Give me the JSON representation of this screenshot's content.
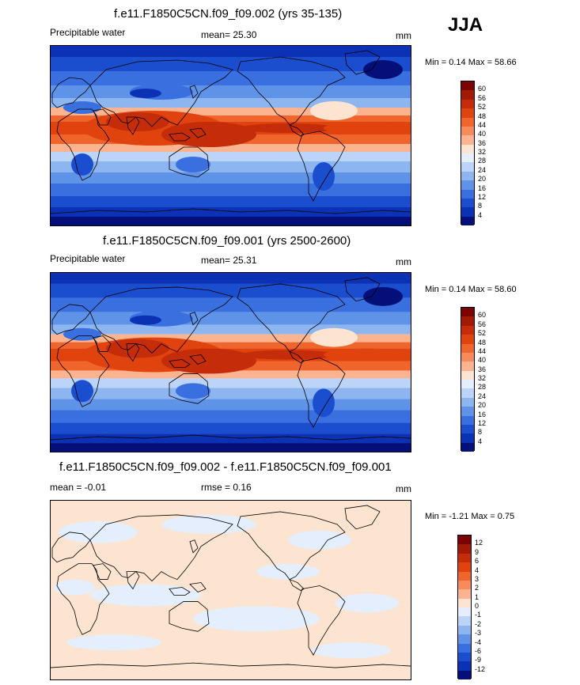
{
  "season": "JJA",
  "panels": [
    {
      "title": "f.e11.F1850C5CN.f09_f09.002 (yrs 35-135)",
      "left_label": "Precipitable water",
      "mean_label": "mean=  25.30",
      "units": "mm",
      "minmax": "Min =   0.14 Max =  58.66",
      "field": "abs",
      "colorbar": {
        "labels": [
          "60",
          "56",
          "52",
          "48",
          "44",
          "40",
          "36",
          "32",
          "28",
          "24",
          "20",
          "16",
          "12",
          "8",
          "4"
        ],
        "colors": [
          "#7a0403",
          "#a11a06",
          "#c42c0a",
          "#e0430e",
          "#f0652c",
          "#f88b5c",
          "#fbb48f",
          "#fde4d0",
          "#e4eefc",
          "#bcd4f8",
          "#8db6f1",
          "#5f93e8",
          "#3a6fe0",
          "#1b4ecf",
          "#0b32b5",
          "#040f7a"
        ]
      }
    },
    {
      "title": "f.e11.F1850C5CN.f09_f09.001 (yrs 2500-2600)",
      "left_label": "Precipitable water",
      "mean_label": "mean=  25.31",
      "units": "mm",
      "minmax": "Min =   0.14 Max =  58.60",
      "field": "abs",
      "colorbar": {
        "labels": [
          "60",
          "56",
          "52",
          "48",
          "44",
          "40",
          "36",
          "32",
          "28",
          "24",
          "20",
          "16",
          "12",
          "8",
          "4"
        ],
        "colors": [
          "#7a0403",
          "#a11a06",
          "#c42c0a",
          "#e0430e",
          "#f0652c",
          "#f88b5c",
          "#fbb48f",
          "#fde4d0",
          "#e4eefc",
          "#bcd4f8",
          "#8db6f1",
          "#5f93e8",
          "#3a6fe0",
          "#1b4ecf",
          "#0b32b5",
          "#040f7a"
        ]
      }
    },
    {
      "title": "f.e11.F1850C5CN.f09_f09.002 - f.e11.F1850C5CN.f09_f09.001",
      "left_label": "mean =  -0.01",
      "mean_label": "rmse =   0.16",
      "units": "mm",
      "minmax": "Min =  -1.21 Max =   0.75",
      "field": "diff",
      "colorbar": {
        "labels": [
          "12",
          "9",
          "6",
          "4",
          "3",
          "2",
          "1",
          "0",
          "-1",
          "-2",
          "-3",
          "-4",
          "-6",
          "-9",
          "-12"
        ],
        "colors": [
          "#7a0403",
          "#a11a06",
          "#c42c0a",
          "#e0430e",
          "#f0652c",
          "#f88b5c",
          "#fbb48f",
          "#fde4d0",
          "#e4eefc",
          "#bcd4f8",
          "#8db6f1",
          "#5f93e8",
          "#3a6fe0",
          "#1b4ecf",
          "#0b32b5",
          "#040f7a"
        ]
      }
    }
  ]
}
